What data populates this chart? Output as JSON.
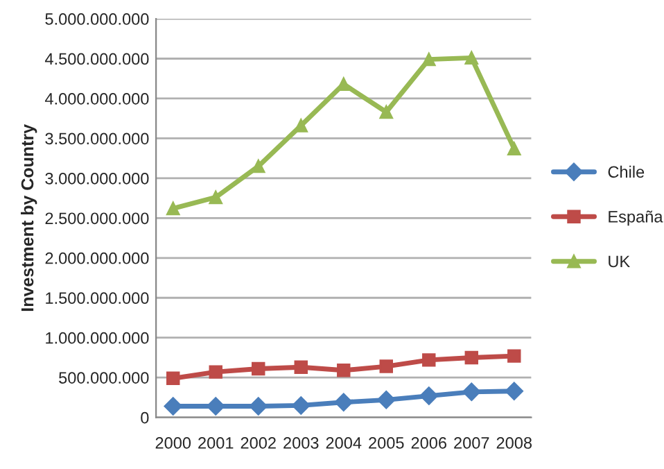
{
  "chart_data": {
    "type": "line",
    "ylabel": "Investment by Country",
    "categories": [
      "2000",
      "2001",
      "2002",
      "2003",
      "2004",
      "2005",
      "2006",
      "2007",
      "2008"
    ],
    "series": [
      {
        "name": "Chile",
        "color": "#4a7ebb",
        "marker": "diamond",
        "values": [
          140000000,
          140000000,
          140000000,
          150000000,
          190000000,
          220000000,
          270000000,
          320000000,
          330000000
        ]
      },
      {
        "name": "España",
        "color": "#be4b48",
        "marker": "square",
        "values": [
          490000000,
          570000000,
          610000000,
          630000000,
          590000000,
          640000000,
          720000000,
          750000000,
          770000000
        ]
      },
      {
        "name": "UK",
        "color": "#98b954",
        "marker": "triangle",
        "values": [
          2620000000,
          2760000000,
          3150000000,
          3660000000,
          4180000000,
          3830000000,
          4490000000,
          4510000000,
          3370000000
        ]
      }
    ],
    "ylim": [
      0,
      5000000000
    ],
    "yticks": [
      {
        "value": 0,
        "label": "0"
      },
      {
        "value": 500000000,
        "label": "500.000.000"
      },
      {
        "value": 1000000000,
        "label": "1.000.000.000"
      },
      {
        "value": 1500000000,
        "label": "1.500.000.000"
      },
      {
        "value": 2000000000,
        "label": "2.000.000.000"
      },
      {
        "value": 2500000000,
        "label": "2.500.000.000"
      },
      {
        "value": 3000000000,
        "label": "3.000.000.000"
      },
      {
        "value": 3500000000,
        "label": "3.500.000.000"
      },
      {
        "value": 4000000000,
        "label": "4.000.000.000"
      },
      {
        "value": 4500000000,
        "label": "4.500.000.000"
      },
      {
        "value": 5000000000,
        "label": "5.000.000.000"
      }
    ],
    "grid": "y",
    "legend": "right",
    "line_style": "solid"
  }
}
